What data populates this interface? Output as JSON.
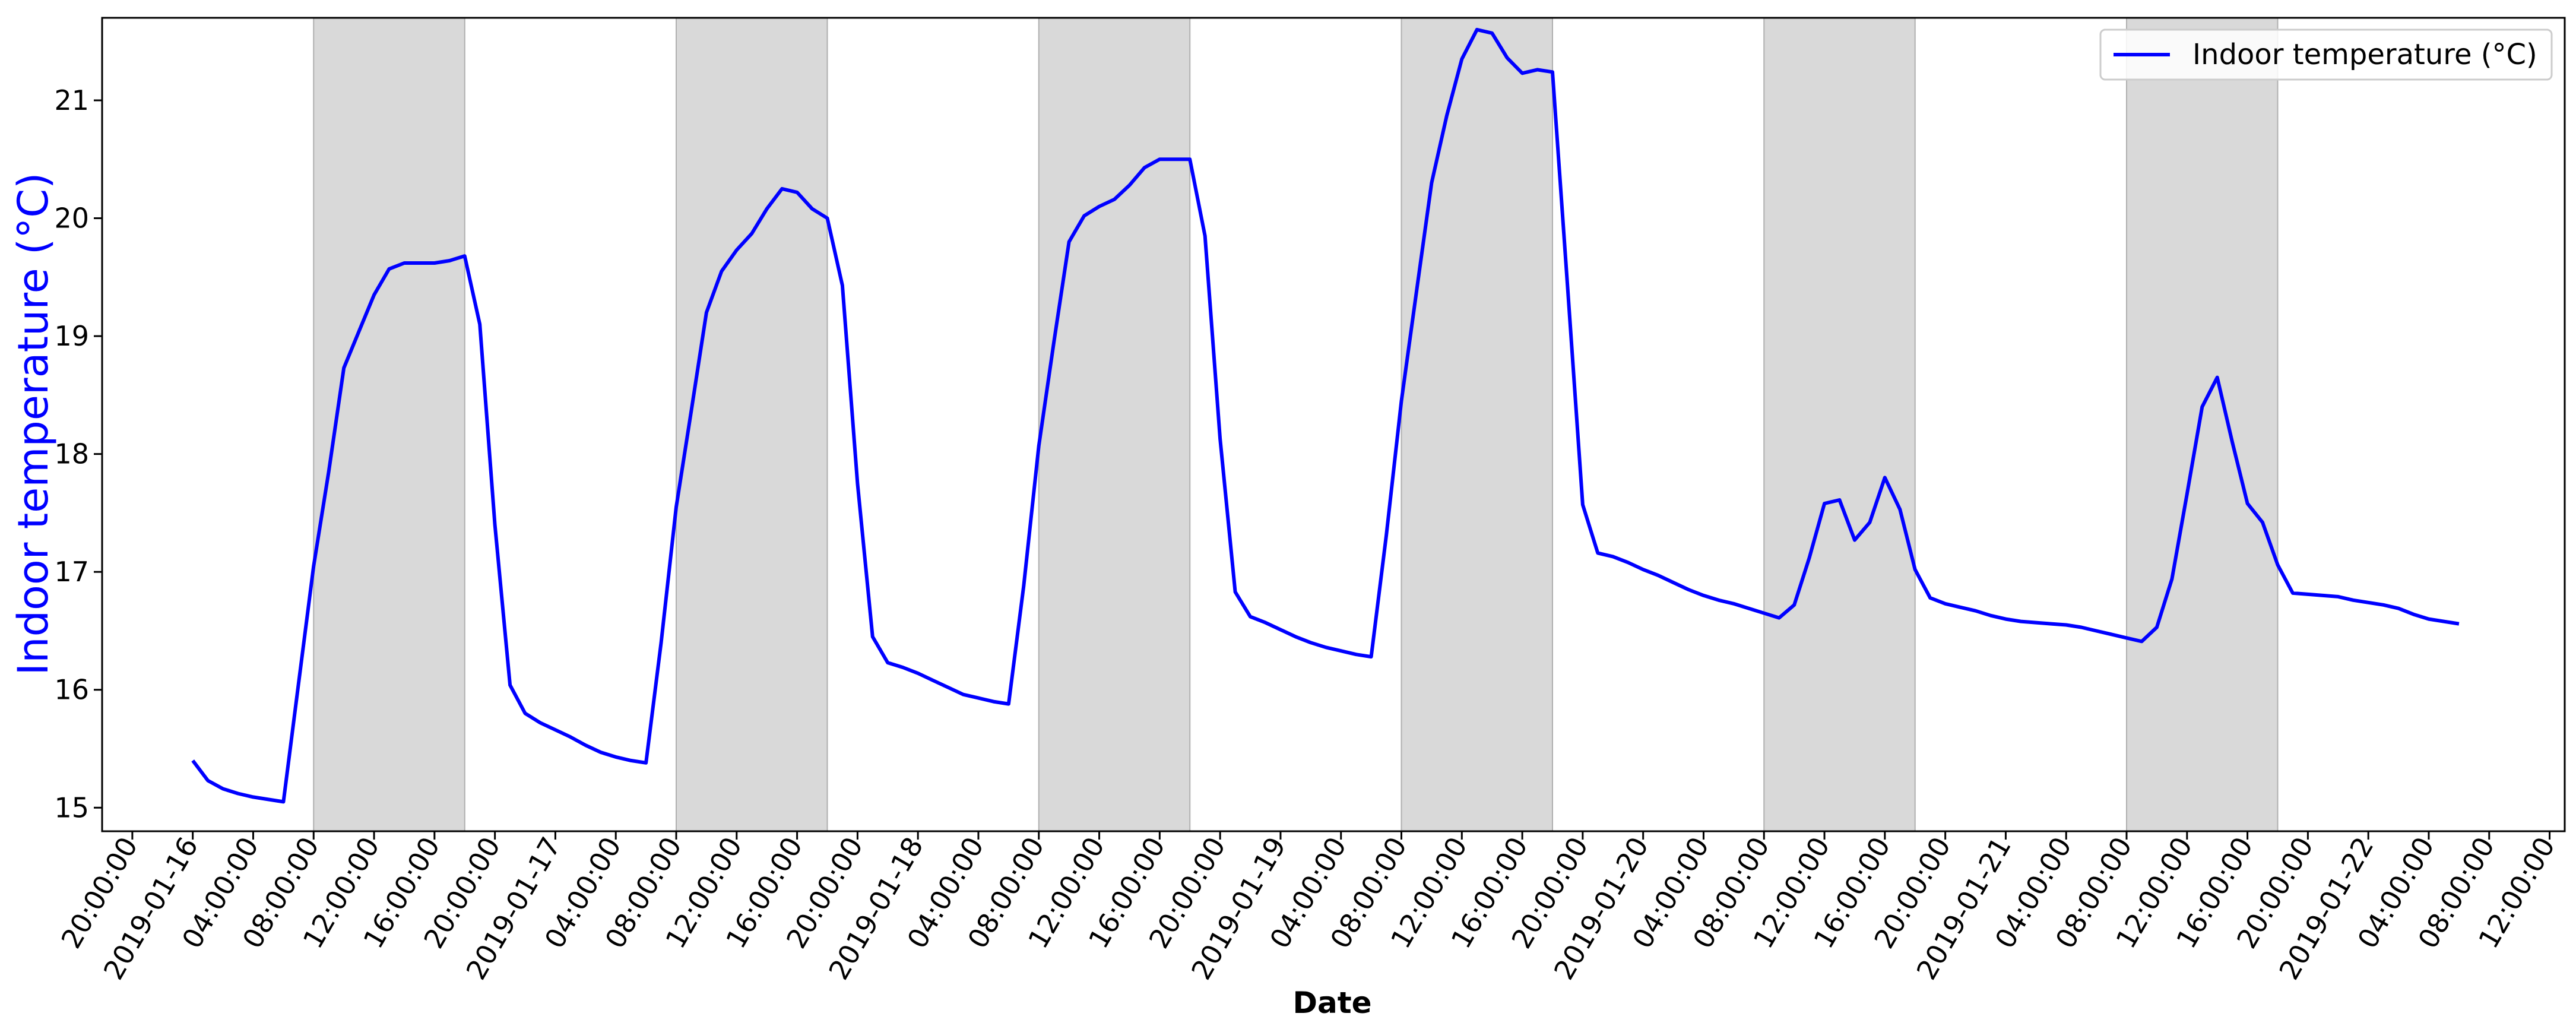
{
  "chart_data": {
    "type": "line",
    "xlabel": "Date",
    "ylabel": "Indoor temperature (°C)",
    "colors": {
      "line": "#0000ff",
      "ylabel": "#0000ff",
      "shade": "#d9d9d9"
    },
    "legend": {
      "placement": "top-right",
      "entries": [
        "Indoor temperature (°C)"
      ]
    },
    "grid": false,
    "xlim": [
      "2019-01-15 18:00",
      "2019-01-22 13:00"
    ],
    "ylim": [
      14.8,
      21.7
    ],
    "yticks": [
      15,
      16,
      17,
      18,
      19,
      20,
      21
    ],
    "xtick_labels": [
      "20:00:00",
      "2019-01-16",
      "04:00:00",
      "08:00:00",
      "12:00:00",
      "16:00:00",
      "20:00:00",
      "2019-01-17",
      "04:00:00",
      "08:00:00",
      "12:00:00",
      "16:00:00",
      "20:00:00",
      "2019-01-18",
      "04:00:00",
      "08:00:00",
      "12:00:00",
      "16:00:00",
      "20:00:00",
      "2019-01-19",
      "04:00:00",
      "08:00:00",
      "12:00:00",
      "16:00:00",
      "20:00:00",
      "2019-01-20",
      "04:00:00",
      "08:00:00",
      "12:00:00",
      "16:00:00",
      "20:00:00",
      "2019-01-21",
      "04:00:00",
      "08:00:00",
      "12:00:00",
      "16:00:00",
      "20:00:00",
      "2019-01-22",
      "04:00:00",
      "08:00:00",
      "12:00:00"
    ],
    "shaded_spans": [
      [
        "2019-01-16 08:00",
        "2019-01-16 18:00"
      ],
      [
        "2019-01-17 08:00",
        "2019-01-17 18:00"
      ],
      [
        "2019-01-18 08:00",
        "2019-01-18 18:00"
      ],
      [
        "2019-01-19 08:00",
        "2019-01-19 18:00"
      ],
      [
        "2019-01-20 08:00",
        "2019-01-20 18:00"
      ],
      [
        "2019-01-21 08:00",
        "2019-01-21 18:00"
      ]
    ],
    "series": [
      {
        "name": "Indoor temperature (°C)",
        "x": [
          "2019-01-16 00:00",
          "2019-01-16 01:00",
          "2019-01-16 02:00",
          "2019-01-16 03:00",
          "2019-01-16 04:00",
          "2019-01-16 05:00",
          "2019-01-16 06:00",
          "2019-01-16 07:00",
          "2019-01-16 08:00",
          "2019-01-16 09:00",
          "2019-01-16 10:00",
          "2019-01-16 11:00",
          "2019-01-16 12:00",
          "2019-01-16 13:00",
          "2019-01-16 14:00",
          "2019-01-16 15:00",
          "2019-01-16 16:00",
          "2019-01-16 17:00",
          "2019-01-16 18:00",
          "2019-01-16 19:00",
          "2019-01-16 20:00",
          "2019-01-16 21:00",
          "2019-01-16 22:00",
          "2019-01-16 23:00",
          "2019-01-17 00:00",
          "2019-01-17 01:00",
          "2019-01-17 02:00",
          "2019-01-17 03:00",
          "2019-01-17 04:00",
          "2019-01-17 05:00",
          "2019-01-17 06:00",
          "2019-01-17 07:00",
          "2019-01-17 08:00",
          "2019-01-17 09:00",
          "2019-01-17 10:00",
          "2019-01-17 11:00",
          "2019-01-17 12:00",
          "2019-01-17 13:00",
          "2019-01-17 14:00",
          "2019-01-17 15:00",
          "2019-01-17 16:00",
          "2019-01-17 17:00",
          "2019-01-17 18:00",
          "2019-01-17 19:00",
          "2019-01-17 20:00",
          "2019-01-17 21:00",
          "2019-01-17 22:00",
          "2019-01-17 23:00",
          "2019-01-18 00:00",
          "2019-01-18 01:00",
          "2019-01-18 02:00",
          "2019-01-18 03:00",
          "2019-01-18 04:00",
          "2019-01-18 05:00",
          "2019-01-18 06:00",
          "2019-01-18 07:00",
          "2019-01-18 08:00",
          "2019-01-18 09:00",
          "2019-01-18 10:00",
          "2019-01-18 11:00",
          "2019-01-18 12:00",
          "2019-01-18 13:00",
          "2019-01-18 14:00",
          "2019-01-18 15:00",
          "2019-01-18 16:00",
          "2019-01-18 17:00",
          "2019-01-18 18:00",
          "2019-01-18 19:00",
          "2019-01-18 20:00",
          "2019-01-18 21:00",
          "2019-01-18 22:00",
          "2019-01-18 23:00",
          "2019-01-19 00:00",
          "2019-01-19 01:00",
          "2019-01-19 02:00",
          "2019-01-19 03:00",
          "2019-01-19 04:00",
          "2019-01-19 05:00",
          "2019-01-19 06:00",
          "2019-01-19 07:00",
          "2019-01-19 08:00",
          "2019-01-19 09:00",
          "2019-01-19 10:00",
          "2019-01-19 11:00",
          "2019-01-19 12:00",
          "2019-01-19 13:00",
          "2019-01-19 14:00",
          "2019-01-19 15:00",
          "2019-01-19 16:00",
          "2019-01-19 17:00",
          "2019-01-19 18:00",
          "2019-01-19 19:00",
          "2019-01-19 20:00",
          "2019-01-19 21:00",
          "2019-01-19 22:00",
          "2019-01-19 23:00",
          "2019-01-20 00:00",
          "2019-01-20 01:00",
          "2019-01-20 02:00",
          "2019-01-20 03:00",
          "2019-01-20 04:00",
          "2019-01-20 05:00",
          "2019-01-20 06:00",
          "2019-01-20 07:00",
          "2019-01-20 08:00",
          "2019-01-20 09:00",
          "2019-01-20 10:00",
          "2019-01-20 11:00",
          "2019-01-20 12:00",
          "2019-01-20 13:00",
          "2019-01-20 14:00",
          "2019-01-20 15:00",
          "2019-01-20 16:00",
          "2019-01-20 17:00",
          "2019-01-20 18:00",
          "2019-01-20 19:00",
          "2019-01-20 20:00",
          "2019-01-20 21:00",
          "2019-01-20 22:00",
          "2019-01-20 23:00",
          "2019-01-21 00:00",
          "2019-01-21 01:00",
          "2019-01-21 02:00",
          "2019-01-21 03:00",
          "2019-01-21 04:00",
          "2019-01-21 05:00",
          "2019-01-21 06:00",
          "2019-01-21 07:00",
          "2019-01-21 08:00",
          "2019-01-21 09:00",
          "2019-01-21 10:00",
          "2019-01-21 11:00",
          "2019-01-21 12:00",
          "2019-01-21 13:00",
          "2019-01-21 14:00",
          "2019-01-21 15:00",
          "2019-01-21 16:00",
          "2019-01-21 17:00",
          "2019-01-21 18:00",
          "2019-01-21 19:00",
          "2019-01-21 20:00",
          "2019-01-21 21:00",
          "2019-01-21 22:00",
          "2019-01-21 23:00",
          "2019-01-22 00:00",
          "2019-01-22 01:00",
          "2019-01-22 02:00",
          "2019-01-22 03:00",
          "2019-01-22 04:00",
          "2019-01-22 05:00",
          "2019-01-22 06:00"
        ],
        "y": [
          15.4,
          15.23,
          15.16,
          15.12,
          15.09,
          15.07,
          15.05,
          16.05,
          17.05,
          17.85,
          18.73,
          19.04,
          19.35,
          19.57,
          19.62,
          19.62,
          19.62,
          19.64,
          19.68,
          19.1,
          17.4,
          16.04,
          15.8,
          15.72,
          15.66,
          15.6,
          15.53,
          15.47,
          15.43,
          15.4,
          15.38,
          16.4,
          17.55,
          18.37,
          19.2,
          19.55,
          19.73,
          19.87,
          20.08,
          20.25,
          20.22,
          20.08,
          20.0,
          19.43,
          17.75,
          16.45,
          16.23,
          16.19,
          16.14,
          16.08,
          16.02,
          15.96,
          15.93,
          15.9,
          15.88,
          16.88,
          18.07,
          18.95,
          19.8,
          20.02,
          20.1,
          20.16,
          20.28,
          20.43,
          20.5,
          20.5,
          20.5,
          19.85,
          18.13,
          16.83,
          16.62,
          16.57,
          16.51,
          16.45,
          16.4,
          16.36,
          16.33,
          16.3,
          16.28,
          17.31,
          18.45,
          19.38,
          20.3,
          20.87,
          21.35,
          21.6,
          21.57,
          21.36,
          21.23,
          21.26,
          21.24,
          19.42,
          17.57,
          17.16,
          17.13,
          17.08,
          17.02,
          16.97,
          16.91,
          16.85,
          16.8,
          16.76,
          16.73,
          16.69,
          16.65,
          16.61,
          16.72,
          17.12,
          17.58,
          17.61,
          17.27,
          17.42,
          17.8,
          17.53,
          17.02,
          16.78,
          16.73,
          16.7,
          16.67,
          16.63,
          16.6,
          16.58,
          16.57,
          16.56,
          16.55,
          16.53,
          16.5,
          16.47,
          16.44,
          16.41,
          16.53,
          16.94,
          17.66,
          18.4,
          18.65,
          18.1,
          17.58,
          17.42,
          17.06,
          16.82,
          16.81,
          16.8,
          16.79,
          16.76,
          16.74,
          16.72,
          16.69,
          16.64,
          16.6,
          16.58,
          16.56
        ]
      }
    ]
  }
}
